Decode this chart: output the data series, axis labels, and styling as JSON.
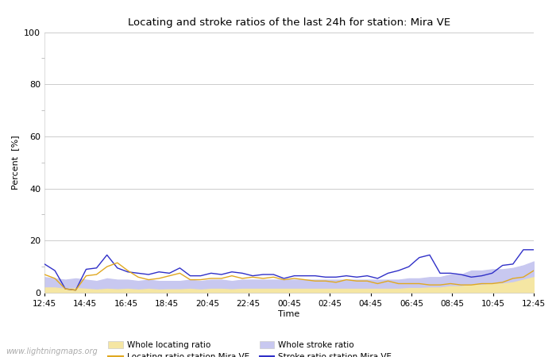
{
  "title": "Locating and stroke ratios of the last 24h for station: Mira VE",
  "ylabel": "Percent  [%]",
  "xlabel": "Time",
  "ylim": [
    0,
    100
  ],
  "yticks": [
    0,
    20,
    40,
    60,
    80,
    100
  ],
  "xtick_labels": [
    "12:45",
    "14:45",
    "16:45",
    "18:45",
    "20:45",
    "22:45",
    "00:45",
    "02:45",
    "04:45",
    "06:45",
    "08:45",
    "10:45",
    "12:45"
  ],
  "watermark": "www.lightningmaps.org",
  "background_color": "#ffffff",
  "plot_bg_color": "#ffffff",
  "grid_color": "#cccccc",
  "whole_locating_fill_color": "#f5e6a3",
  "whole_stroke_fill_color": "#c8c8f0",
  "locating_line_color": "#e0a820",
  "stroke_line_color": "#3030c8",
  "whole_locating_ratio": [
    2.0,
    2.0,
    1.5,
    1.8,
    1.5,
    1.2,
    1.5,
    1.3,
    1.5,
    1.2,
    1.5,
    1.2,
    1.3,
    1.3,
    1.5,
    1.2,
    1.5,
    1.5,
    1.3,
    1.5,
    1.5,
    1.5,
    1.5,
    1.5,
    1.5,
    1.5,
    1.5,
    1.5,
    1.5,
    1.5,
    1.5,
    1.5,
    1.5,
    1.5,
    1.5,
    1.8,
    1.8,
    2.0,
    2.0,
    2.5,
    2.5,
    3.0,
    3.0,
    3.5,
    3.5,
    4.0,
    5.0,
    6.0
  ],
  "whole_stroke_ratio": [
    6.0,
    5.5,
    5.0,
    5.5,
    5.0,
    4.5,
    5.5,
    5.0,
    5.0,
    4.5,
    5.0,
    4.5,
    4.5,
    4.5,
    5.0,
    4.5,
    5.0,
    5.0,
    4.5,
    5.0,
    5.0,
    5.0,
    5.0,
    5.0,
    5.0,
    5.0,
    5.0,
    5.0,
    5.0,
    5.0,
    5.0,
    5.0,
    5.0,
    5.0,
    5.0,
    5.5,
    5.5,
    6.0,
    6.0,
    7.0,
    7.0,
    8.5,
    8.5,
    9.0,
    9.0,
    9.5,
    10.5,
    12.0
  ],
  "locating_station": [
    7.0,
    5.5,
    1.5,
    1.0,
    6.5,
    7.0,
    10.0,
    11.5,
    8.5,
    6.0,
    5.0,
    5.5,
    6.5,
    7.5,
    5.0,
    5.0,
    5.5,
    5.5,
    6.5,
    5.5,
    6.0,
    5.5,
    6.0,
    5.0,
    5.5,
    5.0,
    4.5,
    4.5,
    4.0,
    5.0,
    4.5,
    4.5,
    3.5,
    4.5,
    3.5,
    3.5,
    3.5,
    3.0,
    3.0,
    3.5,
    3.0,
    3.0,
    3.5,
    3.5,
    4.0,
    5.5,
    6.0,
    8.5
  ],
  "stroke_station": [
    11.0,
    8.5,
    1.5,
    1.0,
    9.0,
    9.5,
    14.5,
    9.5,
    8.0,
    7.5,
    7.0,
    8.0,
    7.5,
    9.5,
    6.5,
    6.5,
    7.5,
    7.0,
    8.0,
    7.5,
    6.5,
    7.0,
    7.0,
    5.5,
    6.5,
    6.5,
    6.5,
    6.0,
    6.0,
    6.5,
    6.0,
    6.5,
    5.5,
    7.5,
    8.5,
    10.0,
    13.5,
    14.5,
    7.5,
    7.5,
    7.0,
    6.0,
    6.5,
    7.5,
    10.5,
    11.0,
    16.5,
    16.5
  ]
}
